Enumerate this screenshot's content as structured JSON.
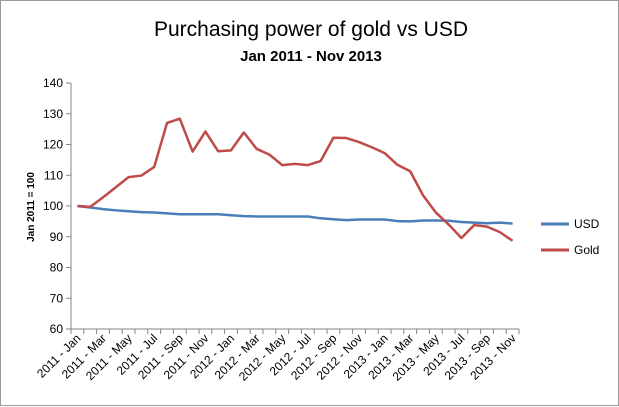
{
  "chart_data": {
    "type": "line",
    "title": "Purchasing power of gold vs USD",
    "subtitle": "Jan 2011 - Nov 2013",
    "xlabel": "",
    "ylabel": "Jan 2011 = 100",
    "ylim": [
      60,
      140
    ],
    "yticks": [
      60,
      70,
      80,
      90,
      100,
      110,
      120,
      130,
      140
    ],
    "grid": false,
    "legend_position": "right",
    "tick_labels": [
      "2011 - Jan",
      "2011 - Mar",
      "2011 - May",
      "2011 - Jul",
      "2011 - Sep",
      "2011 - Nov",
      "2012 - Jan",
      "2012 - Mar",
      "2012 - May",
      "2012 - Jul",
      "2012 - Sep",
      "2012 - Nov",
      "2013 - Jan",
      "2013 - Mar",
      "2013 - May",
      "2013 - Jul",
      "2013 - Sep",
      "2013 - Nov"
    ],
    "categories": [
      "2011 - Jan",
      "2011 - Feb",
      "2011 - Mar",
      "2011 - Apr",
      "2011 - May",
      "2011 - Jun",
      "2011 - Jul",
      "2011 - Aug",
      "2011 - Sep",
      "2011 - Oct",
      "2011 - Nov",
      "2011 - Dec",
      "2012 - Jan",
      "2012 - Feb",
      "2012 - Mar",
      "2012 - Apr",
      "2012 - May",
      "2012 - Jun",
      "2012 - Jul",
      "2012 - Aug",
      "2012 - Sep",
      "2012 - Oct",
      "2012 - Nov",
      "2012 - Dec",
      "2013 - Jan",
      "2013 - Feb",
      "2013 - Mar",
      "2013 - Apr",
      "2013 - May",
      "2013 - Jun",
      "2013 - Jul",
      "2013 - Aug",
      "2013 - Sep",
      "2013 - Oct",
      "2013 - Nov"
    ],
    "series": [
      {
        "name": "USD",
        "color": "#4a7ebb",
        "values": [
          100,
          99.5,
          99.0,
          98.6,
          98.3,
          98.0,
          97.9,
          97.6,
          97.3,
          97.3,
          97.3,
          97.3,
          97.0,
          96.7,
          96.6,
          96.6,
          96.6,
          96.6,
          96.6,
          96.0,
          95.7,
          95.4,
          95.6,
          95.6,
          95.6,
          95.1,
          95.0,
          95.3,
          95.3,
          95.2,
          94.8,
          94.6,
          94.4,
          94.6,
          94.3
        ]
      },
      {
        "name": "Gold",
        "color": "#be4b48",
        "values": [
          100,
          99.7,
          102.8,
          106.1,
          109.4,
          109.9,
          112.7,
          127.0,
          128.4,
          117.7,
          124.2,
          117.8,
          118.1,
          123.9,
          118.6,
          116.7,
          113.3,
          113.7,
          113.3,
          114.6,
          122.2,
          122.1,
          120.8,
          119.1,
          117.2,
          113.4,
          111.3,
          103.5,
          97.9,
          94.0,
          89.6,
          93.8,
          93.3,
          91.5,
          88.7
        ]
      }
    ]
  }
}
